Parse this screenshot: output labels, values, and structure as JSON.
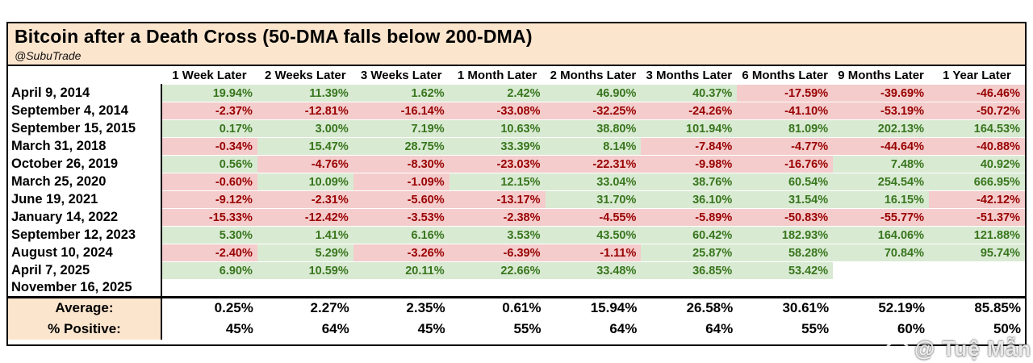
{
  "header": {
    "title": "Bitcoin after a Death Cross (50-DMA falls below 200-DMA)",
    "subtitle": "@SubuTrade"
  },
  "watermark": {
    "icon": "diamond-icon",
    "text": "@ Tuệ Mẫn"
  },
  "colors": {
    "positive_bg": "#d9ead3",
    "positive_text": "#38761d",
    "negative_bg": "#f4cccc",
    "negative_text": "#990000",
    "header_bg": "#fce5cd",
    "border": "#000000"
  },
  "chart_data": {
    "type": "table",
    "title": "Bitcoin after a Death Cross (50-DMA falls below 200-DMA)",
    "columns": [
      "1 Week Later",
      "2 Weeks Later",
      "3 Weeks Later",
      "1 Month Later",
      "2 Months Later",
      "3 Months Later",
      "6 Months Later",
      "9 Months Later",
      "1 Year Later"
    ],
    "rows": [
      {
        "date": "April 9, 2014",
        "values": [
          "19.94%",
          "11.39%",
          "1.62%",
          "2.42%",
          "46.90%",
          "40.37%",
          "-17.59%",
          "-39.69%",
          "-46.46%"
        ]
      },
      {
        "date": "September 4, 2014",
        "values": [
          "-2.37%",
          "-12.81%",
          "-16.14%",
          "-33.08%",
          "-32.25%",
          "-24.26%",
          "-41.10%",
          "-53.19%",
          "-50.72%"
        ]
      },
      {
        "date": "September 15, 2015",
        "values": [
          "0.17%",
          "3.00%",
          "7.19%",
          "10.63%",
          "38.80%",
          "101.94%",
          "81.09%",
          "202.13%",
          "164.53%"
        ]
      },
      {
        "date": "March 31, 2018",
        "values": [
          "-0.34%",
          "15.47%",
          "28.75%",
          "33.39%",
          "8.14%",
          "-7.84%",
          "-4.77%",
          "-44.64%",
          "-40.88%"
        ]
      },
      {
        "date": "October 26, 2019",
        "values": [
          "0.56%",
          "-4.76%",
          "-8.30%",
          "-23.03%",
          "-22.31%",
          "-9.98%",
          "-16.76%",
          "7.48%",
          "40.92%"
        ]
      },
      {
        "date": "March 25, 2020",
        "values": [
          "-0.60%",
          "10.09%",
          "-1.09%",
          "12.15%",
          "33.04%",
          "38.76%",
          "60.54%",
          "254.54%",
          "666.95%"
        ]
      },
      {
        "date": "June 19, 2021",
        "values": [
          "-9.12%",
          "-2.31%",
          "-5.60%",
          "-13.17%",
          "31.70%",
          "36.10%",
          "31.54%",
          "16.15%",
          "-42.12%"
        ]
      },
      {
        "date": "January 14, 2022",
        "values": [
          "-15.33%",
          "-12.42%",
          "-3.53%",
          "-2.38%",
          "-4.55%",
          "-5.89%",
          "-50.83%",
          "-55.77%",
          "-51.37%"
        ]
      },
      {
        "date": "September 12, 2023",
        "values": [
          "5.30%",
          "1.41%",
          "6.16%",
          "3.53%",
          "43.50%",
          "60.42%",
          "182.93%",
          "164.06%",
          "121.88%"
        ]
      },
      {
        "date": "August 10, 2024",
        "values": [
          "-2.40%",
          "5.29%",
          "-3.26%",
          "-6.39%",
          "-1.11%",
          "25.87%",
          "58.28%",
          "70.84%",
          "95.74%"
        ]
      },
      {
        "date": "April 7, 2025",
        "values": [
          "6.90%",
          "10.59%",
          "20.11%",
          "22.66%",
          "33.48%",
          "36.85%",
          "53.42%",
          "",
          ""
        ]
      },
      {
        "date": "November 16, 2025",
        "values": [
          "",
          "",
          "",
          "",
          "",
          "",
          "",
          "",
          ""
        ]
      }
    ],
    "summary_rows": [
      {
        "label": "Average:",
        "values": [
          "0.25%",
          "2.27%",
          "2.35%",
          "0.61%",
          "15.94%",
          "26.58%",
          "30.61%",
          "52.19%",
          "85.85%"
        ]
      },
      {
        "label": "% Positive:",
        "values": [
          "45%",
          "64%",
          "45%",
          "55%",
          "64%",
          "64%",
          "55%",
          "60%",
          "50%"
        ]
      }
    ]
  }
}
